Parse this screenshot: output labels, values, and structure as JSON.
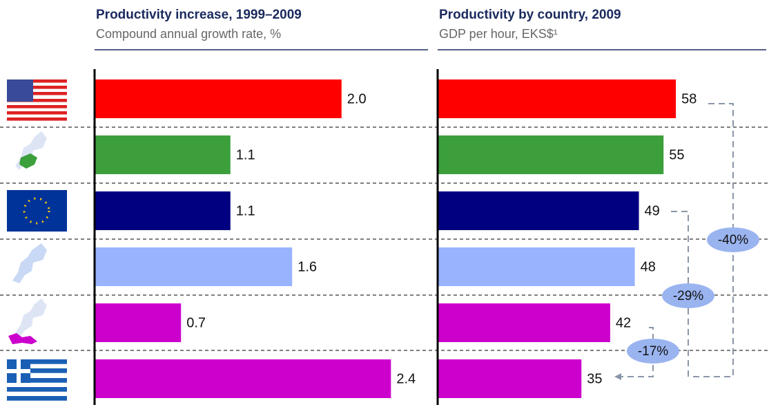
{
  "chart_data": [
    {
      "type": "bar",
      "orientation": "horizontal",
      "title": "Productivity increase, 1999–2009",
      "subtitle": "Compound annual growth rate, %",
      "values": [
        2.0,
        1.1,
        1.1,
        1.6,
        0.7,
        2.4
      ],
      "value_labels": [
        "2.0",
        "1.1",
        "1.1",
        "1.6",
        "0.7",
        "2.4"
      ],
      "colors": [
        "#ff0000",
        "#3c9f3c",
        "#000080",
        "#99b3ff",
        "#cc00cc",
        "#cc00cc"
      ],
      "xlim": [
        0,
        2.7
      ]
    },
    {
      "type": "bar",
      "orientation": "horizontal",
      "title": "Productivity by country, 2009",
      "subtitle": "GDP per hour, EKS$¹",
      "values": [
        58,
        55,
        49,
        48,
        42,
        35
      ],
      "colors": [
        "#ff0000",
        "#3c9f3c",
        "#000080",
        "#99b3ff",
        "#cc00cc",
        "#cc00cc"
      ],
      "xlim": [
        0,
        80
      ],
      "annotations": [
        "-40%",
        "-29%",
        "-17%"
      ]
    }
  ]
}
